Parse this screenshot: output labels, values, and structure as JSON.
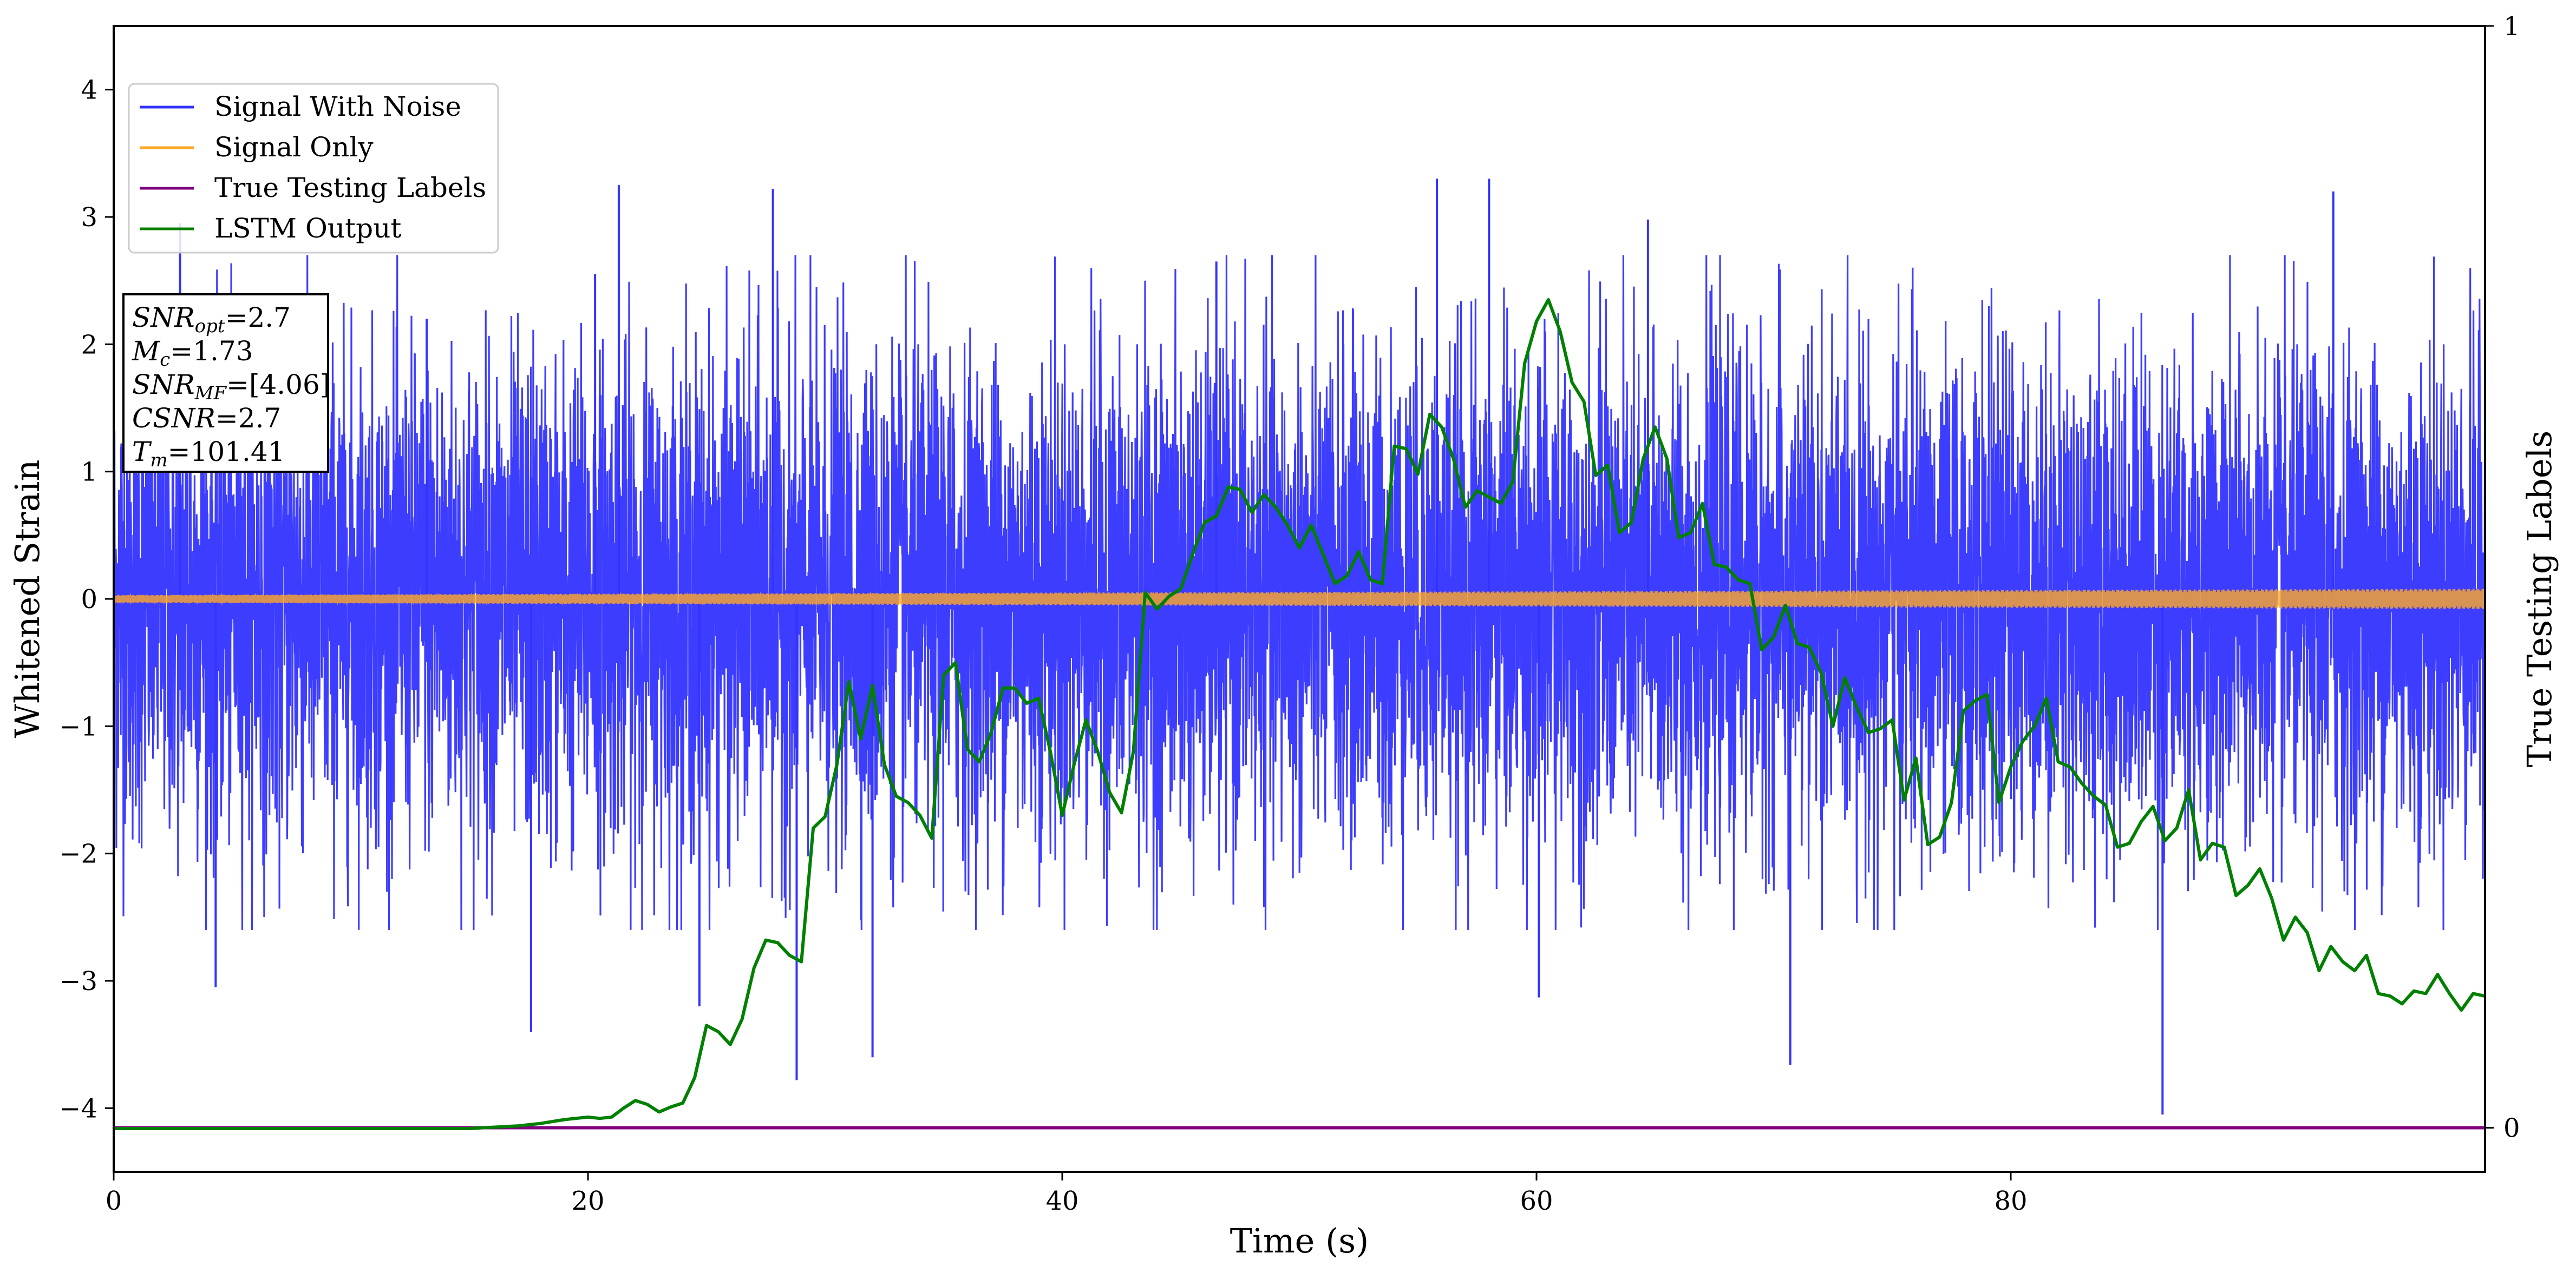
{
  "chart_data": {
    "type": "line",
    "title": "",
    "xlabel": "Time (s)",
    "ylabel": "Whitened Strain",
    "y2label": "True Testing Labels",
    "xlim": [
      0,
      100
    ],
    "ylim": [
      -4.5,
      4.5
    ],
    "y2lim": [
      -0.04,
      1.0
    ],
    "x_ticks": [
      0,
      20,
      40,
      60,
      80
    ],
    "y_ticks": [
      -4,
      -3,
      -2,
      -1,
      0,
      1,
      2,
      3,
      4
    ],
    "y2_ticks": [
      0,
      1
    ],
    "grid": false,
    "legend_position": "upper-left",
    "annotation": [
      {
        "base": "SNR",
        "sub": "opt",
        "value": "=2.7"
      },
      {
        "base": "M",
        "sub": "c",
        "value": "=1.73"
      },
      {
        "base": "SNR",
        "sub": "MF",
        "value": "=[4.06]"
      },
      {
        "base": "CSNR",
        "sub": "",
        "value": "=2.7"
      },
      {
        "base": "T",
        "sub": "m",
        "value": "=101.41"
      }
    ],
    "series": [
      {
        "name": "Signal With Noise",
        "color": "#3333ff",
        "kind": "noise",
        "sigma": 0.95,
        "x_range": [
          0,
          100
        ],
        "spikes": [
          [
            2.8,
            2.95
          ],
          [
            4.3,
            -3.05
          ],
          [
            13.2,
            2.2
          ],
          [
            17.6,
            -3.4
          ],
          [
            20.3,
            2.55
          ],
          [
            21.3,
            3.25
          ],
          [
            24.7,
            -3.2
          ],
          [
            27.8,
            3.22
          ],
          [
            28.8,
            -3.78
          ],
          [
            32.0,
            -3.6
          ],
          [
            46.5,
            2.65
          ],
          [
            55.8,
            3.3
          ],
          [
            58.0,
            3.3
          ],
          [
            60.1,
            -3.13
          ],
          [
            64.7,
            2.98
          ],
          [
            70.7,
            -3.66
          ],
          [
            86.4,
            -4.05
          ],
          [
            93.6,
            3.2
          ]
        ]
      },
      {
        "name": "Signal Only",
        "color": "#ffa726",
        "kind": "chirp",
        "amplitude_start": 0.03,
        "amplitude_end": 0.08,
        "x_range": [
          0,
          100
        ]
      },
      {
        "name": "True Testing Labels",
        "color": "#800080",
        "axis": "right",
        "x": [
          0,
          100
        ],
        "y": [
          0,
          0
        ]
      },
      {
        "name": "LSTM Output",
        "color": "#008000",
        "axis": "left",
        "x": [
          0,
          15,
          16,
          17,
          18,
          19,
          20,
          20.5,
          21,
          21.5,
          22,
          22.5,
          23,
          23.5,
          24,
          24.5,
          25,
          25.5,
          26,
          26.5,
          27,
          27.5,
          28,
          28.5,
          29,
          29.5,
          30,
          30.5,
          31,
          31.5,
          32,
          32.5,
          33,
          33.5,
          34,
          34.5,
          35,
          35.5,
          36,
          36.5,
          37,
          37.5,
          38,
          38.5,
          39,
          39.5,
          40,
          40.5,
          41,
          41.5,
          42,
          42.5,
          43,
          43.5,
          44,
          44.5,
          45,
          45.5,
          46,
          46.5,
          47,
          47.5,
          48,
          48.5,
          49,
          49.5,
          50,
          50.5,
          51,
          51.5,
          52,
          52.5,
          53,
          53.5,
          54,
          54.5,
          55,
          55.5,
          56,
          56.5,
          57,
          57.5,
          58,
          58.5,
          59,
          59.5,
          60,
          60.5,
          61,
          61.5,
          62,
          62.5,
          63,
          63.5,
          64,
          64.5,
          65,
          65.5,
          66,
          66.5,
          67,
          67.5,
          68,
          68.5,
          69,
          69.5,
          70,
          70.5,
          71,
          71.5,
          72,
          72.5,
          73,
          73.5,
          74,
          74.5,
          75,
          75.5,
          76,
          76.5,
          77,
          77.5,
          78,
          78.5,
          79,
          79.5,
          80,
          80.5,
          81,
          81.5,
          82,
          82.5,
          83,
          83.5,
          84,
          84.5,
          85,
          85.5,
          86,
          86.5,
          87,
          87.5,
          88,
          88.5,
          89,
          89.5,
          90,
          90.5,
          91,
          91.5,
          92,
          92.5,
          93,
          93.5,
          94,
          94.5,
          95,
          95.5,
          96,
          96.5,
          97,
          97.5,
          98,
          98.5,
          99,
          99.5,
          100
        ],
        "y": [
          -4.16,
          -4.16,
          -4.15,
          -4.14,
          -4.12,
          -4.09,
          -4.07,
          -4.08,
          -4.07,
          -4.0,
          -3.94,
          -3.97,
          -4.03,
          -3.99,
          -3.96,
          -3.76,
          -3.35,
          -3.4,
          -3.5,
          -3.3,
          -2.9,
          -2.68,
          -2.7,
          -2.8,
          -2.85,
          -1.8,
          -1.71,
          -1.3,
          -0.65,
          -1.1,
          -0.68,
          -1.3,
          -1.55,
          -1.6,
          -1.7,
          -1.88,
          -0.6,
          -0.5,
          -1.18,
          -1.28,
          -1.05,
          -0.7,
          -0.7,
          -0.82,
          -0.78,
          -1.2,
          -1.7,
          -1.3,
          -0.95,
          -1.2,
          -1.52,
          -1.68,
          -1.2,
          0.05,
          -0.08,
          0.02,
          0.08,
          0.35,
          0.6,
          0.65,
          0.88,
          0.86,
          0.68,
          0.82,
          0.72,
          0.58,
          0.4,
          0.58,
          0.35,
          0.12,
          0.18,
          0.37,
          0.15,
          0.12,
          1.2,
          1.18,
          0.98,
          1.45,
          1.35,
          1.1,
          0.72,
          0.85,
          0.8,
          0.75,
          0.92,
          1.85,
          2.18,
          2.35,
          2.1,
          1.7,
          1.55,
          0.97,
          1.05,
          0.52,
          0.6,
          1.1,
          1.35,
          1.1,
          0.48,
          0.52,
          0.75,
          0.27,
          0.25,
          0.15,
          0.12,
          -0.4,
          -0.3,
          -0.05,
          -0.35,
          -0.38,
          -0.58,
          -1.0,
          -0.62,
          -0.85,
          -1.05,
          -1.02,
          -0.95,
          -1.58,
          -1.25,
          -1.93,
          -1.87,
          -1.6,
          -0.88,
          -0.8,
          -0.75,
          -1.6,
          -1.32,
          -1.12,
          -1.0,
          -0.78,
          -1.28,
          -1.32,
          -1.45,
          -1.55,
          -1.62,
          -1.95,
          -1.92,
          -1.75,
          -1.63,
          -1.9,
          -1.8,
          -1.5,
          -2.05,
          -1.92,
          -1.95,
          -2.33,
          -2.25,
          -2.12,
          -2.35,
          -2.68,
          -2.5,
          -2.62,
          -2.92,
          -2.73,
          -2.85,
          -2.92,
          -2.8,
          -3.1,
          -3.12,
          -3.18,
          -3.08,
          -3.1,
          -2.95,
          -3.1,
          -3.23,
          -3.1,
          -3.12
        ]
      }
    ]
  }
}
